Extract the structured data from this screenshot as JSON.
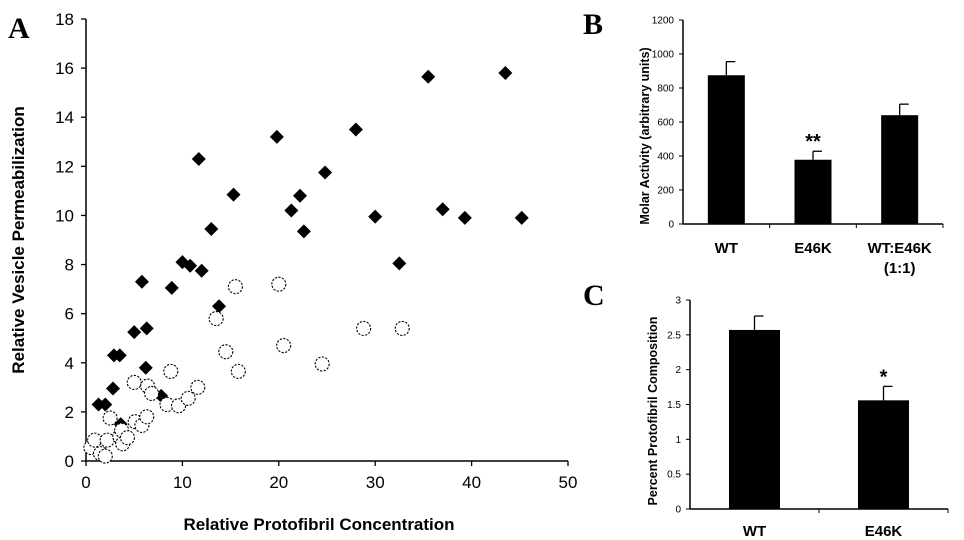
{
  "chart_data": [
    {
      "panel": "A",
      "type": "scatter",
      "xlabel": "Relative Protofibril Concentration",
      "ylabel": "Relative Vesicle Permeabilization",
      "xlim": [
        0,
        50
      ],
      "ylim": [
        0,
        18
      ],
      "xticks": [
        0,
        10,
        20,
        30,
        40,
        50
      ],
      "yticks": [
        0,
        2,
        4,
        6,
        8,
        10,
        12,
        14,
        16,
        18
      ],
      "grid": false,
      "series": [
        {
          "marker": "filled-diamond",
          "points": [
            [
              1.3,
              2.3
            ],
            [
              2.0,
              2.3
            ],
            [
              2.8,
              2.95
            ],
            [
              2.9,
              4.3
            ],
            [
              3.5,
              4.3
            ],
            [
              3.6,
              1.5
            ],
            [
              5.0,
              5.25
            ],
            [
              5.8,
              7.3
            ],
            [
              6.2,
              3.8
            ],
            [
              6.3,
              5.4
            ],
            [
              7.8,
              2.65
            ],
            [
              8.9,
              7.05
            ],
            [
              10.0,
              8.1
            ],
            [
              10.8,
              7.95
            ],
            [
              11.7,
              12.3
            ],
            [
              12.0,
              7.75
            ],
            [
              13.0,
              9.45
            ],
            [
              13.8,
              6.3
            ],
            [
              15.3,
              10.85
            ],
            [
              19.8,
              13.2
            ],
            [
              21.3,
              10.2
            ],
            [
              22.2,
              10.8
            ],
            [
              22.6,
              9.35
            ],
            [
              24.8,
              11.75
            ],
            [
              28.0,
              13.5
            ],
            [
              30.0,
              9.95
            ],
            [
              32.5,
              8.05
            ],
            [
              35.5,
              15.65
            ],
            [
              37.0,
              10.25
            ],
            [
              39.3,
              9.9
            ],
            [
              43.5,
              15.8
            ],
            [
              45.2,
              9.9
            ]
          ]
        },
        {
          "marker": "open-circle",
          "points": [
            [
              0.5,
              0.55
            ],
            [
              0.9,
              0.85
            ],
            [
              1.5,
              0.3
            ],
            [
              2.0,
              0.2
            ],
            [
              2.2,
              0.85
            ],
            [
              2.5,
              1.75
            ],
            [
              3.5,
              1.0
            ],
            [
              3.8,
              0.7
            ],
            [
              3.7,
              1.25
            ],
            [
              4.3,
              0.95
            ],
            [
              5.1,
              1.6
            ],
            [
              5.0,
              3.2
            ],
            [
              5.8,
              1.45
            ],
            [
              6.3,
              1.8
            ],
            [
              6.4,
              3.05
            ],
            [
              6.8,
              2.75
            ],
            [
              8.4,
              2.3
            ],
            [
              8.8,
              3.65
            ],
            [
              9.6,
              2.25
            ],
            [
              10.6,
              2.55
            ],
            [
              11.6,
              3.0
            ],
            [
              13.5,
              5.8
            ],
            [
              14.5,
              4.45
            ],
            [
              15.5,
              7.1
            ],
            [
              15.8,
              3.65
            ],
            [
              20.0,
              7.2
            ],
            [
              20.5,
              4.7
            ],
            [
              24.5,
              3.95
            ],
            [
              28.8,
              5.4
            ],
            [
              32.8,
              5.4
            ]
          ]
        }
      ]
    },
    {
      "panel": "B",
      "type": "bar",
      "categories": [
        "WT",
        "E46K",
        "WT:E46K\n(1:1)"
      ],
      "values": [
        875,
        378,
        640
      ],
      "errors": [
        80,
        50,
        65
      ],
      "ylabel": "Molar Activity (arbitrary units)",
      "ylim": [
        0,
        1200
      ],
      "yticks": [
        0,
        200,
        400,
        600,
        800,
        1000,
        1200
      ],
      "annotations": [
        {
          "category": "E46K",
          "text": "**"
        }
      ]
    },
    {
      "panel": "C",
      "type": "bar",
      "categories": [
        "WT",
        "E46K"
      ],
      "values": [
        2.57,
        1.56
      ],
      "errors": [
        0.2,
        0.2
      ],
      "ylabel": "Percent Protofibril Composition",
      "ylim": [
        0,
        3
      ],
      "yticks": [
        "0",
        "0.5",
        "1",
        "1.5",
        "2",
        "2.5",
        "3"
      ],
      "annotations": [
        {
          "category": "E46K",
          "text": "*"
        }
      ]
    }
  ]
}
